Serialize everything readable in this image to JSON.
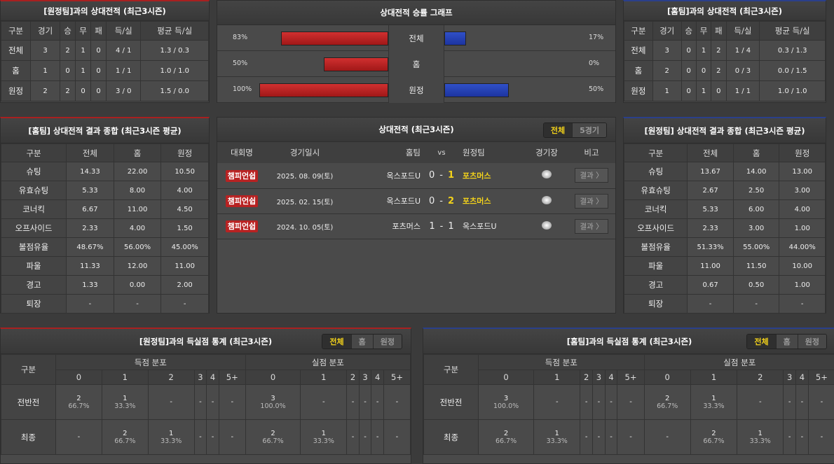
{
  "away_h2h": {
    "title": "[원정팀]과의 상대전적 (최근3시즌)",
    "headers": [
      "구분",
      "경기",
      "승",
      "무",
      "패",
      "득/실",
      "평균 득/실"
    ],
    "rows": [
      [
        "전체",
        "3",
        "2",
        "1",
        "0",
        "4 / 1",
        "1.3 / 0.3"
      ],
      [
        "홈",
        "1",
        "0",
        "1",
        "0",
        "1 / 1",
        "1.0 / 1.0"
      ],
      [
        "원정",
        "2",
        "2",
        "0",
        "0",
        "3 / 0",
        "1.5 / 0.0"
      ]
    ]
  },
  "graph": {
    "title": "상대전적 승률 그래프",
    "colors": {
      "home": "#c02424",
      "away": "#2444b8"
    },
    "rows": [
      {
        "label": "전체",
        "left": 83,
        "left_text": "83%",
        "right": 17,
        "right_text": "17%"
      },
      {
        "label": "홈",
        "left": 50,
        "left_text": "50%",
        "right": 0,
        "right_text": "0%"
      },
      {
        "label": "원정",
        "left": 100,
        "left_text": "100%",
        "right": 50,
        "right_text": "50%"
      }
    ]
  },
  "home_h2h": {
    "title": "[홈팀]과의 상대전적 (최근3시즌)",
    "headers": [
      "구분",
      "경기",
      "승",
      "무",
      "패",
      "득/실",
      "평균 득/실"
    ],
    "rows": [
      [
        "전체",
        "3",
        "0",
        "1",
        "2",
        "1 / 4",
        "0.3 / 1.3"
      ],
      [
        "홈",
        "2",
        "0",
        "0",
        "2",
        "0 / 3",
        "0.0 / 1.5"
      ],
      [
        "원정",
        "1",
        "0",
        "1",
        "0",
        "1 / 1",
        "1.0 / 1.0"
      ]
    ]
  },
  "home_summary": {
    "title": "[홈팀] 상대전적 결과 종합 (최근3시즌 평균)",
    "headers": [
      "구분",
      "전체",
      "홈",
      "원정"
    ],
    "rows": [
      [
        "슈팅",
        "14.33",
        "22.00",
        "10.50"
      ],
      [
        "유효슈팅",
        "5.33",
        "8.00",
        "4.00"
      ],
      [
        "코너킥",
        "6.67",
        "11.00",
        "4.50"
      ],
      [
        "오프사이드",
        "2.33",
        "4.00",
        "1.50"
      ],
      [
        "볼점유율",
        "48.67%",
        "56.00%",
        "45.00%"
      ],
      [
        "파울",
        "11.33",
        "12.00",
        "11.00"
      ],
      [
        "경고",
        "1.33",
        "0.00",
        "2.00"
      ],
      [
        "퇴장",
        "-",
        "-",
        "-"
      ]
    ]
  },
  "away_summary": {
    "title": "[원정팀] 상대전적 결과 종합 (최근3시즌 평균)",
    "headers": [
      "구분",
      "전체",
      "홈",
      "원정"
    ],
    "rows": [
      [
        "슈팅",
        "13.67",
        "14.00",
        "13.00"
      ],
      [
        "유효슈팅",
        "2.67",
        "2.50",
        "3.00"
      ],
      [
        "코너킥",
        "5.33",
        "6.00",
        "4.00"
      ],
      [
        "오프사이드",
        "2.33",
        "3.00",
        "1.00"
      ],
      [
        "볼점유율",
        "51.33%",
        "55.00%",
        "44.00%"
      ],
      [
        "파울",
        "11.00",
        "11.50",
        "10.00"
      ],
      [
        "경고",
        "0.67",
        "0.50",
        "1.00"
      ],
      [
        "퇴장",
        "-",
        "-",
        "-"
      ]
    ]
  },
  "matches": {
    "title": "상대전적 (최근3시즌)",
    "toggle": [
      "전체",
      "5경기"
    ],
    "headers": [
      "대회명",
      "경기일시",
      "홈팀",
      "vs",
      "원정팀",
      "경기장",
      "비고"
    ],
    "rows": [
      {
        "league": "챔피언쉽",
        "date": "2025. 08. 09(토)",
        "home": "옥스포드U",
        "hs": "0",
        "sep": "-",
        "as": "1",
        "away": "포츠머스",
        "winner": "away",
        "result": "결과 〉"
      },
      {
        "league": "챔피언쉽",
        "date": "2025. 02. 15(토)",
        "home": "옥스포드U",
        "hs": "0",
        "sep": "-",
        "as": "2",
        "away": "포츠머스",
        "winner": "away",
        "result": "결과 〉"
      },
      {
        "league": "챔피언쉽",
        "date": "2024. 10. 05(토)",
        "home": "포츠머스",
        "hs": "1",
        "sep": "-",
        "as": "1",
        "away": "옥스포드U",
        "winner": "",
        "result": "결과 〉"
      }
    ]
  },
  "away_goals": {
    "title": "[원정팀]과의 득실점 통계 (최근3시즌)",
    "toggle": [
      "전체",
      "홈",
      "원정"
    ],
    "col_label": "구분",
    "for_label": "득점 분포",
    "against_label": "실점 분포",
    "buckets": [
      "0",
      "1",
      "2",
      "3",
      "4",
      "5+"
    ],
    "rows": [
      {
        "label": "전반전",
        "cells": [
          [
            "2",
            "66.7%"
          ],
          [
            "1",
            "33.3%"
          ],
          [
            "-"
          ],
          [
            "-"
          ],
          [
            "-"
          ],
          [
            "-"
          ],
          [
            "3",
            "100.0%"
          ],
          [
            "-"
          ],
          [
            "-"
          ],
          [
            "-"
          ],
          [
            "-"
          ],
          [
            "-"
          ]
        ]
      },
      {
        "label": "최종",
        "cells": [
          [
            "-"
          ],
          [
            "2",
            "66.7%"
          ],
          [
            "1",
            "33.3%"
          ],
          [
            "-"
          ],
          [
            "-"
          ],
          [
            "-"
          ],
          [
            "2",
            "66.7%"
          ],
          [
            "1",
            "33.3%"
          ],
          [
            "-"
          ],
          [
            "-"
          ],
          [
            "-"
          ],
          [
            "-"
          ]
        ]
      }
    ]
  },
  "home_goals": {
    "title": "[홈팀]과의 득실점 통계 (최근3시즌)",
    "toggle": [
      "전체",
      "홈",
      "원정"
    ],
    "col_label": "구분",
    "for_label": "득점 분포",
    "against_label": "실점 분포",
    "buckets": [
      "0",
      "1",
      "2",
      "3",
      "4",
      "5+"
    ],
    "rows": [
      {
        "label": "전반전",
        "cells": [
          [
            "3",
            "100.0%"
          ],
          [
            "-"
          ],
          [
            "-"
          ],
          [
            "-"
          ],
          [
            "-"
          ],
          [
            "-"
          ],
          [
            "2",
            "66.7%"
          ],
          [
            "1",
            "33.3%"
          ],
          [
            "-"
          ],
          [
            "-"
          ],
          [
            "-"
          ],
          [
            "-"
          ]
        ]
      },
      {
        "label": "최종",
        "cells": [
          [
            "2",
            "66.7%"
          ],
          [
            "1",
            "33.3%"
          ],
          [
            "-"
          ],
          [
            "-"
          ],
          [
            "-"
          ],
          [
            "-"
          ],
          [
            "-"
          ],
          [
            "2",
            "66.7%"
          ],
          [
            "1",
            "33.3%"
          ],
          [
            "-"
          ],
          [
            "-"
          ],
          [
            "-"
          ]
        ]
      }
    ]
  }
}
